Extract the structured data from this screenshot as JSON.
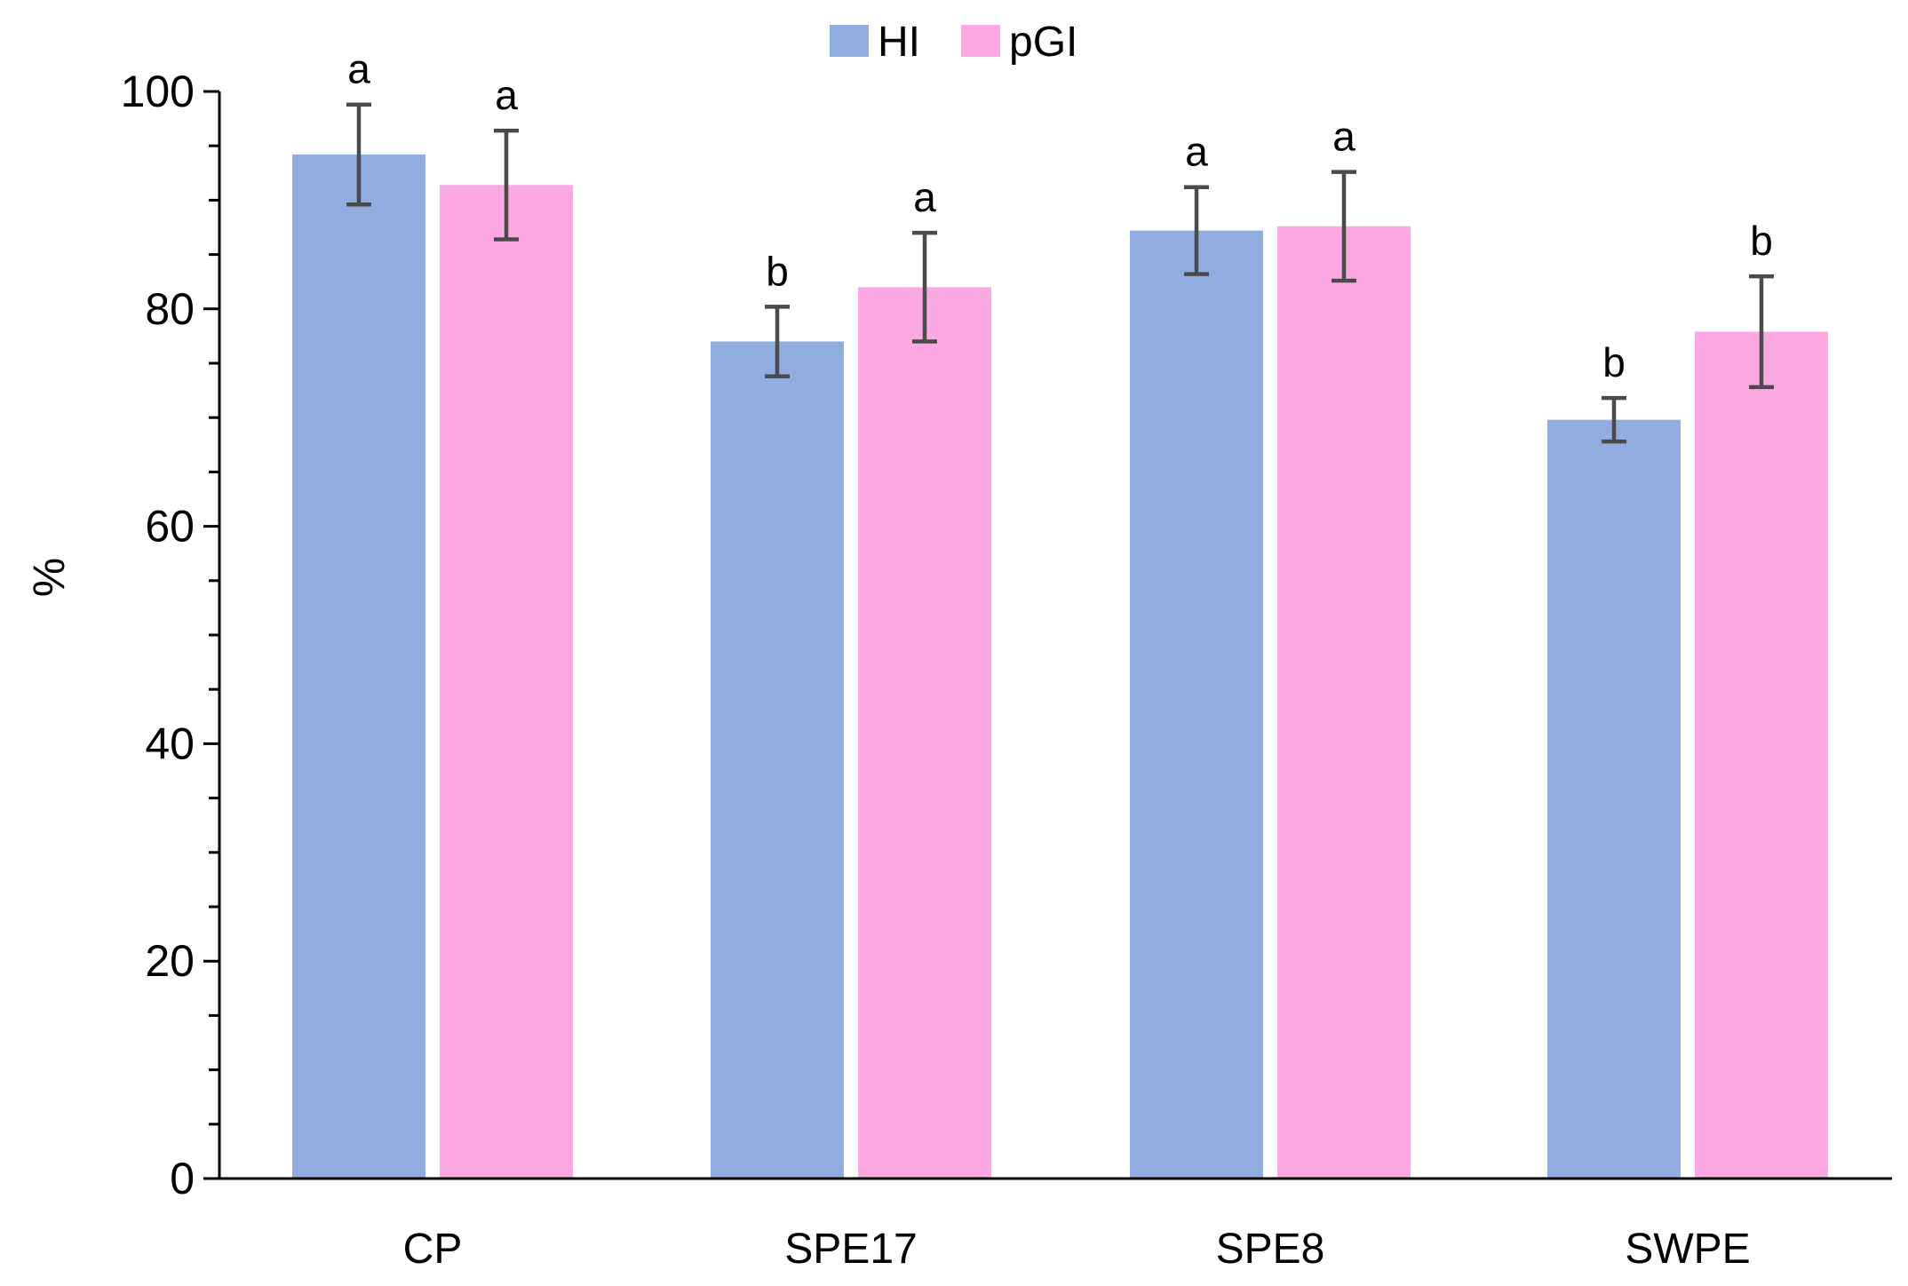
{
  "chart_data": {
    "type": "bar",
    "title": "",
    "xlabel": "",
    "ylabel": "%",
    "ylim": [
      0,
      100
    ],
    "yticks": [
      "0",
      "20",
      "40",
      "60",
      "80",
      "100"
    ],
    "minor_tick_step": 5,
    "categories": [
      "CP",
      "SPE17",
      "SPE8",
      "SWPE"
    ],
    "series": [
      {
        "name": "HI",
        "color": "#91ADDF",
        "values": [
          94.2,
          77.0,
          87.2,
          69.8
        ],
        "errors": [
          4.6,
          3.2,
          4.0,
          2.0
        ],
        "significance": [
          "a",
          "b",
          "a",
          "b"
        ]
      },
      {
        "name": "pGI",
        "color": "#FCA8E2",
        "values": [
          91.4,
          82.0,
          87.6,
          77.9
        ],
        "errors": [
          5.0,
          5.0,
          5.0,
          5.1
        ],
        "significance": [
          "a",
          "a",
          "a",
          "b"
        ]
      }
    ],
    "error_bar_color": "#4A4A4A",
    "legend_position": "top-center",
    "grid": false
  }
}
